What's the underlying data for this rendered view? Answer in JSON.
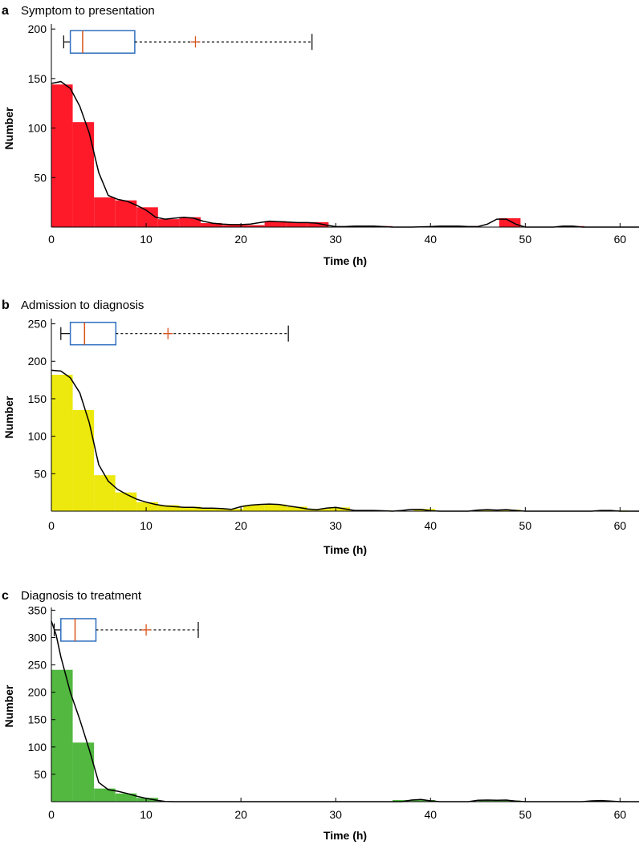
{
  "chart_data": [
    {
      "type": "bar",
      "panel_letter": "a",
      "title": "Symptom to presentation",
      "xlabel": "Time (h)",
      "ylabel": "Number",
      "xlim": [
        0,
        62
      ],
      "ylim": [
        0,
        205
      ],
      "xticks": [
        0,
        10,
        20,
        30,
        40,
        50,
        60
      ],
      "yticks": [
        50,
        100,
        150,
        200
      ],
      "bar_color": "#ff1a2a",
      "bin_width": 2.25,
      "bins": [
        {
          "x0": 0,
          "value": 144
        },
        {
          "x0": 2.25,
          "value": 106
        },
        {
          "x0": 4.5,
          "value": 30
        },
        {
          "x0": 6.75,
          "value": 27
        },
        {
          "x0": 9,
          "value": 20
        },
        {
          "x0": 11.25,
          "value": 8
        },
        {
          "x0": 13.5,
          "value": 10
        },
        {
          "x0": 15.75,
          "value": 4
        },
        {
          "x0": 18,
          "value": 2
        },
        {
          "x0": 20.25,
          "value": 2
        },
        {
          "x0": 22.5,
          "value": 6
        },
        {
          "x0": 24.75,
          "value": 5
        },
        {
          "x0": 27,
          "value": 5
        },
        {
          "x0": 29.25,
          "value": 0
        },
        {
          "x0": 31.5,
          "value": 1
        },
        {
          "x0": 33.75,
          "value": 1
        },
        {
          "x0": 36,
          "value": 0
        },
        {
          "x0": 38.25,
          "value": 0
        },
        {
          "x0": 40.5,
          "value": 1
        },
        {
          "x0": 42.75,
          "value": 1
        },
        {
          "x0": 45,
          "value": 0
        },
        {
          "x0": 47.25,
          "value": 9
        },
        {
          "x0": 49.5,
          "value": 0
        },
        {
          "x0": 51.75,
          "value": 0
        },
        {
          "x0": 54,
          "value": 1
        }
      ],
      "density": [
        [
          0,
          145
        ],
        [
          1,
          147
        ],
        [
          2,
          140
        ],
        [
          3,
          122
        ],
        [
          4,
          95
        ],
        [
          5,
          55
        ],
        [
          6,
          32
        ],
        [
          7,
          28
        ],
        [
          8,
          26
        ],
        [
          9,
          22
        ],
        [
          10,
          17
        ],
        [
          11,
          10
        ],
        [
          12,
          8
        ],
        [
          13,
          9
        ],
        [
          14,
          10
        ],
        [
          15,
          9
        ],
        [
          16,
          6
        ],
        [
          17,
          4
        ],
        [
          18,
          3
        ],
        [
          19,
          2.5
        ],
        [
          20,
          2.5
        ],
        [
          21,
          3
        ],
        [
          22,
          4.5
        ],
        [
          23,
          6
        ],
        [
          24,
          5.5
        ],
        [
          25,
          5
        ],
        [
          26,
          4.5
        ],
        [
          27,
          4.5
        ],
        [
          28,
          4
        ],
        [
          29,
          2
        ],
        [
          30,
          0.5
        ],
        [
          31,
          0.5
        ],
        [
          32,
          1
        ],
        [
          33,
          1
        ],
        [
          34,
          1
        ],
        [
          35,
          0.5
        ],
        [
          36,
          0
        ],
        [
          38,
          0
        ],
        [
          40,
          0.5
        ],
        [
          41,
          1
        ],
        [
          42,
          1
        ],
        [
          43,
          1
        ],
        [
          44,
          0.5
        ],
        [
          45,
          0.5
        ],
        [
          46,
          3
        ],
        [
          47,
          8
        ],
        [
          48,
          8
        ],
        [
          49,
          3
        ],
        [
          50,
          0
        ],
        [
          53,
          0
        ],
        [
          54,
          1
        ],
        [
          55,
          1
        ],
        [
          56,
          0
        ],
        [
          62,
          0
        ]
      ],
      "boxplot": {
        "whisker_low": 1.3,
        "q1": 2,
        "median": 3.3,
        "q3": 8.8,
        "whisker_high": 27.5,
        "mean": 15.2,
        "y": 187
      }
    },
    {
      "type": "bar",
      "panel_letter": "b",
      "title": "Admission to diagnosis",
      "xlabel": "Time (h)",
      "ylabel": "Number",
      "xlim": [
        0,
        62
      ],
      "ylim": [
        0,
        257
      ],
      "xticks": [
        0,
        10,
        20,
        30,
        40,
        50,
        60
      ],
      "yticks": [
        50,
        100,
        150,
        200,
        250
      ],
      "bar_color": "#ede80d",
      "bin_width": 2.25,
      "bins": [
        {
          "x0": 0,
          "value": 182
        },
        {
          "x0": 2.25,
          "value": 135
        },
        {
          "x0": 4.5,
          "value": 48
        },
        {
          "x0": 6.75,
          "value": 25
        },
        {
          "x0": 9,
          "value": 12
        },
        {
          "x0": 11.25,
          "value": 8
        },
        {
          "x0": 13.5,
          "value": 6
        },
        {
          "x0": 15.75,
          "value": 4
        },
        {
          "x0": 18,
          "value": 3
        },
        {
          "x0": 20.25,
          "value": 8
        },
        {
          "x0": 22.5,
          "value": 9
        },
        {
          "x0": 24.75,
          "value": 6
        },
        {
          "x0": 27,
          "value": 3
        },
        {
          "x0": 29.25,
          "value": 5
        },
        {
          "x0": 31.5,
          "value": 1
        },
        {
          "x0": 33.75,
          "value": 1
        },
        {
          "x0": 36,
          "value": 0
        },
        {
          "x0": 38.25,
          "value": 3
        },
        {
          "x0": 40.5,
          "value": 0
        },
        {
          "x0": 42.75,
          "value": 0
        },
        {
          "x0": 45,
          "value": 2
        },
        {
          "x0": 47.25,
          "value": 2
        },
        {
          "x0": 49.5,
          "value": 0
        },
        {
          "x0": 51.75,
          "value": 0
        },
        {
          "x0": 54,
          "value": 0
        },
        {
          "x0": 56.25,
          "value": 0
        },
        {
          "x0": 58.5,
          "value": 1
        }
      ],
      "density": [
        [
          0,
          188
        ],
        [
          1,
          187
        ],
        [
          2,
          178
        ],
        [
          3,
          158
        ],
        [
          4,
          118
        ],
        [
          5,
          62
        ],
        [
          6,
          40
        ],
        [
          7,
          29
        ],
        [
          8,
          22
        ],
        [
          9,
          16
        ],
        [
          10,
          12
        ],
        [
          11,
          9
        ],
        [
          12,
          7
        ],
        [
          13,
          6
        ],
        [
          14,
          5
        ],
        [
          15,
          5
        ],
        [
          16,
          4
        ],
        [
          17,
          4
        ],
        [
          18,
          3.5
        ],
        [
          19,
          2.5
        ],
        [
          20,
          6
        ],
        [
          21,
          8
        ],
        [
          22,
          9
        ],
        [
          23,
          9.5
        ],
        [
          24,
          9
        ],
        [
          25,
          7
        ],
        [
          26,
          5
        ],
        [
          27,
          3
        ],
        [
          28,
          2
        ],
        [
          29,
          4
        ],
        [
          30,
          5
        ],
        [
          31,
          3
        ],
        [
          32,
          1
        ],
        [
          33,
          1
        ],
        [
          34,
          1
        ],
        [
          35,
          0.5
        ],
        [
          36,
          0
        ],
        [
          37,
          1
        ],
        [
          38,
          2.5
        ],
        [
          39,
          2.5
        ],
        [
          40,
          0.5
        ],
        [
          41,
          0
        ],
        [
          44,
          0
        ],
        [
          45,
          1.5
        ],
        [
          46,
          2
        ],
        [
          47,
          1.5
        ],
        [
          48,
          2
        ],
        [
          49,
          1
        ],
        [
          50,
          0
        ],
        [
          57,
          0
        ],
        [
          58,
          1
        ],
        [
          59,
          1
        ],
        [
          60,
          0
        ],
        [
          62,
          0
        ]
      ],
      "boxplot": {
        "whisker_low": 1,
        "q1": 2,
        "median": 3.5,
        "q3": 6.8,
        "whisker_high": 25,
        "mean": 12.3,
        "y": 237
      }
    },
    {
      "type": "bar",
      "panel_letter": "c",
      "title": "Diagnosis to treatment",
      "xlabel": "Time (h)",
      "ylabel": "Number",
      "xlim": [
        0,
        62
      ],
      "ylim": [
        0,
        355
      ],
      "xticks": [
        0,
        10,
        20,
        30,
        40,
        50,
        60
      ],
      "yticks": [
        50,
        100,
        150,
        200,
        250,
        300,
        350
      ],
      "bar_color": "#52b840",
      "bin_width": 2.25,
      "bins": [
        {
          "x0": 0,
          "value": 241
        },
        {
          "x0": 2.25,
          "value": 108
        },
        {
          "x0": 4.5,
          "value": 24
        },
        {
          "x0": 6.75,
          "value": 15
        },
        {
          "x0": 9,
          "value": 7
        },
        {
          "x0": 11.25,
          "value": 0
        },
        {
          "x0": 36,
          "value": 3
        },
        {
          "x0": 38.25,
          "value": 3
        },
        {
          "x0": 45,
          "value": 2
        },
        {
          "x0": 47.25,
          "value": 2
        },
        {
          "x0": 56.25,
          "value": 1
        },
        {
          "x0": 58.5,
          "value": 1
        }
      ],
      "density": [
        [
          0,
          330
        ],
        [
          0.5,
          305
        ],
        [
          1,
          265
        ],
        [
          2,
          200
        ],
        [
          3,
          150
        ],
        [
          4,
          95
        ],
        [
          5,
          35
        ],
        [
          6,
          22
        ],
        [
          7,
          19
        ],
        [
          8,
          15
        ],
        [
          9,
          10
        ],
        [
          10,
          6
        ],
        [
          11,
          3
        ],
        [
          12,
          0.5
        ],
        [
          13,
          0
        ],
        [
          37,
          0
        ],
        [
          38,
          3
        ],
        [
          39,
          4
        ],
        [
          40,
          1.5
        ],
        [
          41,
          0
        ],
        [
          44,
          0
        ],
        [
          45,
          2.5
        ],
        [
          46,
          3
        ],
        [
          47,
          2.5
        ],
        [
          48,
          3
        ],
        [
          49,
          1
        ],
        [
          50,
          0
        ],
        [
          56,
          0
        ],
        [
          57,
          1.5
        ],
        [
          58,
          2
        ],
        [
          59,
          1
        ],
        [
          60,
          0
        ],
        [
          62,
          0
        ]
      ],
      "boxplot": {
        "whisker_low": 0.3,
        "q1": 1,
        "median": 2.5,
        "q3": 4.7,
        "whisker_high": 15.5,
        "mean": 10,
        "y": 314
      }
    }
  ]
}
